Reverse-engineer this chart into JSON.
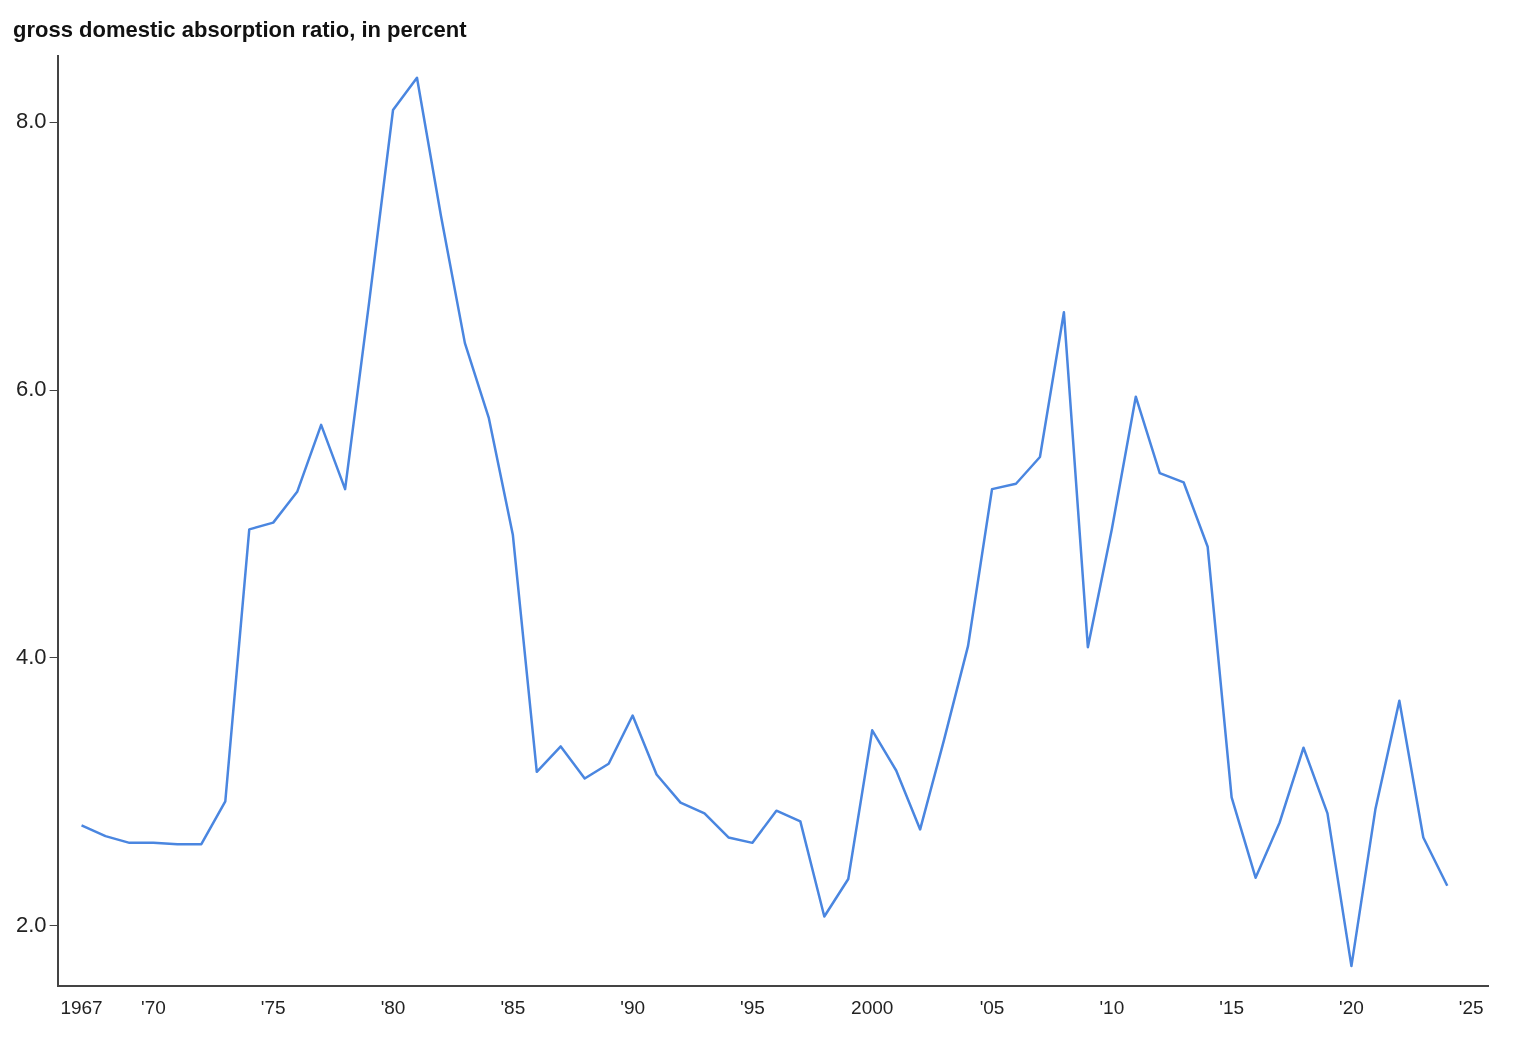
{
  "chart_data": {
    "type": "line",
    "ylabel": "gross domestic absorption ratio, in percent",
    "x": [
      1967,
      1968,
      1969,
      1970,
      1971,
      1972,
      1973,
      1974,
      1975,
      1976,
      1977,
      1978,
      1979,
      1980,
      1981,
      1982,
      1983,
      1984,
      1985,
      1986,
      1987,
      1988,
      1989,
      1990,
      1991,
      1992,
      1993,
      1994,
      1995,
      1996,
      1997,
      1998,
      1999,
      2000,
      2001,
      2002,
      2003,
      2004,
      2005,
      2006,
      2007,
      2008,
      2009,
      2010,
      2011,
      2012,
      2013,
      2014,
      2015,
      2016,
      2017,
      2018,
      2019,
      2020,
      2021,
      2022,
      2023,
      2024
    ],
    "series": [
      {
        "color": "#4a86e0",
        "values": [
          2.75,
          2.67,
          2.62,
          2.62,
          2.61,
          2.61,
          2.93,
          4.96,
          5.01,
          5.24,
          5.74,
          5.26,
          6.65,
          8.09,
          8.33,
          7.3,
          6.35,
          5.79,
          4.92,
          3.15,
          3.34,
          3.1,
          3.21,
          3.57,
          3.13,
          2.92,
          2.84,
          2.66,
          2.62,
          2.86,
          2.78,
          2.07,
          2.35,
          3.46,
          3.16,
          2.72,
          3.39,
          4.09,
          5.26,
          5.3,
          5.5,
          6.58,
          4.08,
          4.96,
          5.95,
          5.38,
          5.31,
          4.83,
          2.96,
          2.36,
          2.77,
          3.33,
          2.84,
          1.7,
          2.87,
          3.68,
          2.66,
          2.3
        ]
      }
    ],
    "xlim": [
      1966,
      2025.7
    ],
    "ylim": [
      1.55,
      8.49
    ],
    "xticks": [
      {
        "value": 1967,
        "label": "1967"
      },
      {
        "value": 1970,
        "label": "'70"
      },
      {
        "value": 1975,
        "label": "'75"
      },
      {
        "value": 1980,
        "label": "'80"
      },
      {
        "value": 1985,
        "label": "'85"
      },
      {
        "value": 1990,
        "label": "'90"
      },
      {
        "value": 1995,
        "label": "'95"
      },
      {
        "value": 2000,
        "label": "2000"
      },
      {
        "value": 2005,
        "label": "'05"
      },
      {
        "value": 2010,
        "label": "'10"
      },
      {
        "value": 2015,
        "label": "'15"
      },
      {
        "value": 2020,
        "label": "'20"
      },
      {
        "value": 2025,
        "label": "'25"
      }
    ],
    "yticks": [
      {
        "value": 2,
        "label": "2.0"
      },
      {
        "value": 4,
        "label": "4.0"
      },
      {
        "value": 6,
        "label": "6.0"
      },
      {
        "value": 8,
        "label": "8.0"
      }
    ],
    "grid": false,
    "legend": false,
    "marker": "none",
    "line_style": "solid"
  }
}
